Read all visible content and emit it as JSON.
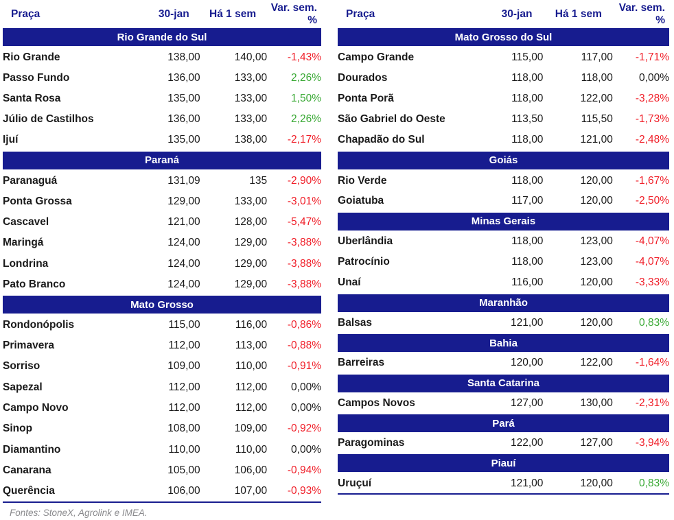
{
  "colors": {
    "navy": "#171C8F",
    "red": "#F01E28",
    "green": "#3AA935",
    "ink": "#1A1A1A",
    "footer_gray": "#8A8A8D"
  },
  "footer": {
    "source": "Fontes: StoneX, Agrolink e IMEA."
  },
  "tables": [
    {
      "id": "left",
      "headers": [
        "Praça",
        "30-jan",
        "Há 1 sem",
        "Var. sem. %"
      ],
      "sections": [
        {
          "region": "Rio Grande do Sul",
          "rows": [
            {
              "name": "Rio Grande",
              "current": "138,00",
              "week_ago": "140,00",
              "var": "-1,43%"
            },
            {
              "name": "Passo Fundo",
              "current": "136,00",
              "week_ago": "133,00",
              "var": "2,26%"
            },
            {
              "name": "Santa Rosa",
              "current": "135,00",
              "week_ago": "133,00",
              "var": "1,50%"
            },
            {
              "name": "Júlio de Castilhos",
              "current": "136,00",
              "week_ago": "133,00",
              "var": "2,26%"
            },
            {
              "name": "Ijuí",
              "current": "135,00",
              "week_ago": "138,00",
              "var": "-2,17%"
            }
          ]
        },
        {
          "region": "Paraná",
          "rows": [
            {
              "name": "Paranaguá",
              "current": "131,09",
              "week_ago": "135",
              "var": "-2,90%"
            },
            {
              "name": "Ponta Grossa",
              "current": "129,00",
              "week_ago": "133,00",
              "var": "-3,01%"
            },
            {
              "name": "Cascavel",
              "current": "121,00",
              "week_ago": "128,00",
              "var": "-5,47%"
            },
            {
              "name": "Maringá",
              "current": "124,00",
              "week_ago": "129,00",
              "var": "-3,88%"
            },
            {
              "name": "Londrina",
              "current": "124,00",
              "week_ago": "129,00",
              "var": "-3,88%"
            },
            {
              "name": "Pato Branco",
              "current": "124,00",
              "week_ago": "129,00",
              "var": "-3,88%"
            }
          ]
        },
        {
          "region": "Mato Grosso",
          "rows": [
            {
              "name": "Rondonópolis",
              "current": "115,00",
              "week_ago": "116,00",
              "var": "-0,86%"
            },
            {
              "name": "Primavera",
              "current": "112,00",
              "week_ago": "113,00",
              "var": "-0,88%"
            },
            {
              "name": "Sorriso",
              "current": "109,00",
              "week_ago": "110,00",
              "var": "-0,91%"
            },
            {
              "name": "Sapezal",
              "current": "112,00",
              "week_ago": "112,00",
              "var": "0,00%"
            },
            {
              "name": "Campo Novo",
              "current": "112,00",
              "week_ago": "112,00",
              "var": "0,00%"
            },
            {
              "name": "Sinop",
              "current": "108,00",
              "week_ago": "109,00",
              "var": "-0,92%"
            },
            {
              "name": "Diamantino",
              "current": "110,00",
              "week_ago": "110,00",
              "var": "0,00%"
            },
            {
              "name": "Canarana",
              "current": "105,00",
              "week_ago": "106,00",
              "var": "-0,94%"
            },
            {
              "name": "Querência",
              "current": "106,00",
              "week_ago": "107,00",
              "var": "-0,93%"
            }
          ]
        }
      ]
    },
    {
      "id": "right",
      "headers": [
        "Praça",
        "30-jan",
        "Há 1 sem",
        "Var. sem. %"
      ],
      "sections": [
        {
          "region": "Mato Grosso do Sul",
          "rows": [
            {
              "name": "Campo Grande",
              "current": "115,00",
              "week_ago": "117,00",
              "var": "-1,71%"
            },
            {
              "name": "Dourados",
              "current": "118,00",
              "week_ago": "118,00",
              "var": "0,00%"
            },
            {
              "name": "Ponta Porã",
              "current": "118,00",
              "week_ago": "122,00",
              "var": "-3,28%"
            },
            {
              "name": "São Gabriel do Oeste",
              "current": "113,50",
              "week_ago": "115,50",
              "var": "-1,73%"
            },
            {
              "name": "Chapadão do Sul",
              "current": "118,00",
              "week_ago": "121,00",
              "var": "-2,48%"
            }
          ]
        },
        {
          "region": "Goiás",
          "rows": [
            {
              "name": "Rio Verde",
              "current": "118,00",
              "week_ago": "120,00",
              "var": "-1,67%"
            },
            {
              "name": "Goiatuba",
              "current": "117,00",
              "week_ago": "120,00",
              "var": "-2,50%"
            }
          ]
        },
        {
          "region": "Minas Gerais",
          "rows": [
            {
              "name": "Uberlândia",
              "current": "118,00",
              "week_ago": "123,00",
              "var": "-4,07%"
            },
            {
              "name": "Patrocínio",
              "current": "118,00",
              "week_ago": "123,00",
              "var": "-4,07%"
            },
            {
              "name": "Unaí",
              "current": "116,00",
              "week_ago": "120,00",
              "var": "-3,33%"
            }
          ]
        },
        {
          "region": "Maranhão",
          "rows": [
            {
              "name": "Balsas",
              "current": "121,00",
              "week_ago": "120,00",
              "var": "0,83%"
            }
          ]
        },
        {
          "region": "Bahia",
          "rows": [
            {
              "name": "Barreiras",
              "current": "120,00",
              "week_ago": "122,00",
              "var": "-1,64%"
            }
          ]
        },
        {
          "region": "Santa Catarina",
          "rows": [
            {
              "name": "Campos Novos",
              "current": "127,00",
              "week_ago": "130,00",
              "var": "-2,31%"
            }
          ]
        },
        {
          "region": "Pará",
          "rows": [
            {
              "name": "Paragominas",
              "current": "122,00",
              "week_ago": "127,00",
              "var": "-3,94%"
            }
          ]
        },
        {
          "region": "Piauí",
          "rows": [
            {
              "name": "Uruçuí",
              "current": "121,00",
              "week_ago": "120,00",
              "var": "0,83%"
            }
          ]
        }
      ]
    }
  ]
}
